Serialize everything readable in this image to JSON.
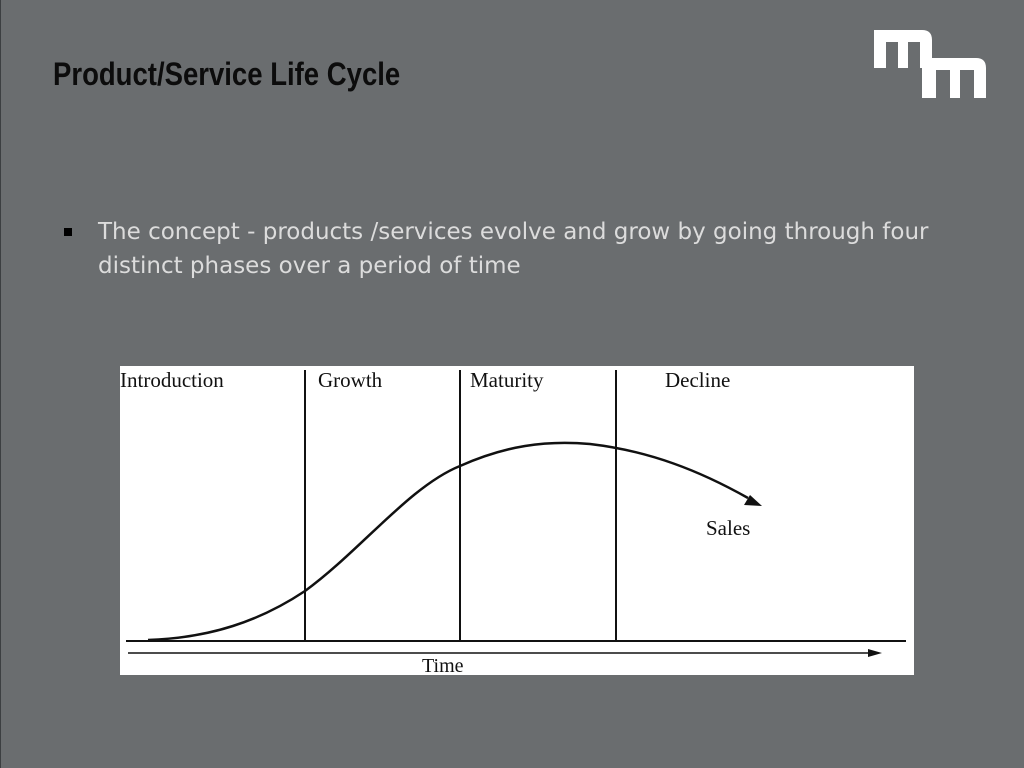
{
  "slide": {
    "title": "Product/Service Life Cycle",
    "bullet_text": "The concept - products /services evolve and grow by going through four distinct phases over a period of time"
  },
  "logo": {
    "letters": "mm"
  },
  "diagram": {
    "phases": [
      "Introduction",
      "Growth",
      "Maturity",
      "Decline"
    ],
    "curve_label": "Sales",
    "axis_label": "Time"
  },
  "colors": {
    "background": "#6a6d6f",
    "title": "#0c0c0c",
    "body_text": "#dcdcdc",
    "logo": "#ffffff",
    "diagram_bg": "#ffffff",
    "diagram_ink": "#111111"
  }
}
